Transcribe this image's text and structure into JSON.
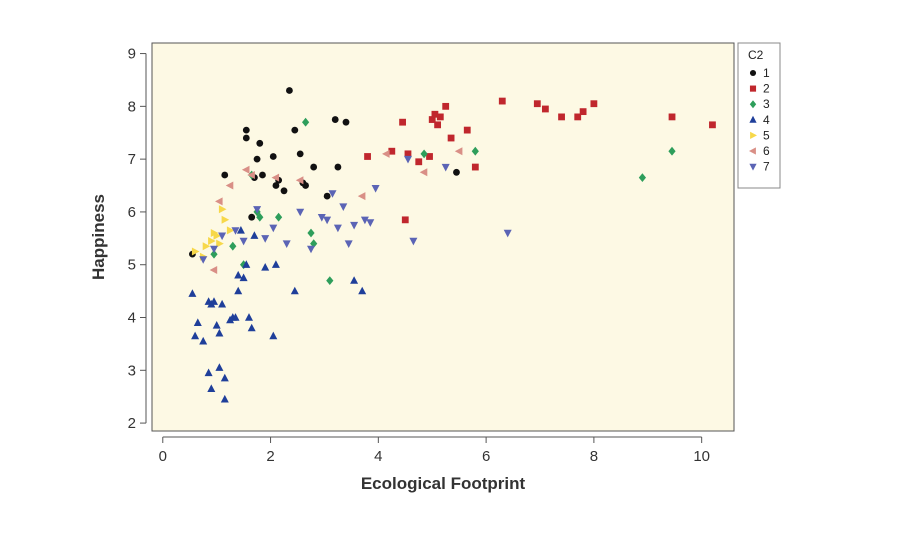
{
  "chart_data": {
    "type": "scatter",
    "title": "",
    "xlabel": "Ecological Footprint",
    "ylabel": "Happiness",
    "xlim": [
      -0.2,
      10.6
    ],
    "ylim": [
      1.85,
      9.2
    ],
    "xticks": [
      0,
      2,
      4,
      6,
      8,
      10
    ],
    "yticks": [
      2,
      3,
      4,
      5,
      6,
      7,
      8,
      9
    ],
    "xtick_labels": [
      "0",
      "2",
      "4",
      "6",
      "8",
      "10"
    ],
    "ytick_labels": [
      "2",
      "3",
      "4",
      "5",
      "6",
      "7",
      "8",
      "9"
    ],
    "grid": false,
    "plot_background": "#fdf9e4",
    "legend": {
      "title": "C2",
      "position": "right"
    },
    "series": [
      {
        "name": "1",
        "color": "#111111",
        "marker": "circle",
        "x": [
          0.55,
          1.15,
          1.55,
          1.55,
          1.7,
          1.75,
          1.8,
          1.85,
          2.05,
          2.1,
          2.15,
          2.25,
          2.35,
          2.45,
          2.55,
          2.6,
          2.65,
          2.8,
          3.05,
          3.2,
          3.25,
          3.4,
          5.45,
          1.65
        ],
        "y": [
          5.2,
          6.7,
          7.55,
          7.4,
          6.65,
          7.0,
          7.3,
          6.7,
          7.05,
          6.5,
          6.6,
          6.4,
          8.3,
          7.55,
          7.1,
          6.55,
          6.5,
          6.85,
          6.3,
          7.75,
          6.85,
          7.7,
          6.75,
          5.9
        ]
      },
      {
        "name": "2",
        "color": "#c0272d",
        "marker": "square",
        "x": [
          3.8,
          4.25,
          4.45,
          4.5,
          4.55,
          4.75,
          4.95,
          5.0,
          5.05,
          5.1,
          5.15,
          5.25,
          5.35,
          5.65,
          5.8,
          6.3,
          6.95,
          7.1,
          7.4,
          7.7,
          7.8,
          8.0,
          9.45,
          10.2
        ],
        "y": [
          7.05,
          7.15,
          7.7,
          5.85,
          7.1,
          6.95,
          7.05,
          7.75,
          7.85,
          7.65,
          7.8,
          8.0,
          7.4,
          7.55,
          6.85,
          8.1,
          8.05,
          7.95,
          7.8,
          7.8,
          7.9,
          8.05,
          7.8,
          7.65
        ]
      },
      {
        "name": "3",
        "color": "#2e9e5b",
        "marker": "diamond",
        "x": [
          0.95,
          1.3,
          1.5,
          1.65,
          1.75,
          1.8,
          2.15,
          2.65,
          2.75,
          2.8,
          3.1,
          4.85,
          5.8,
          8.9,
          9.45
        ],
        "y": [
          5.2,
          5.35,
          5.0,
          6.7,
          6.0,
          5.9,
          5.9,
          7.7,
          5.6,
          5.4,
          4.7,
          7.1,
          7.15,
          6.65,
          7.15
        ]
      },
      {
        "name": "4",
        "color": "#1f3f9a",
        "marker": "triangle-up",
        "x": [
          0.55,
          0.6,
          0.65,
          0.75,
          0.85,
          0.85,
          0.9,
          0.9,
          0.95,
          1.0,
          1.05,
          1.05,
          1.1,
          1.15,
          1.15,
          1.25,
          1.3,
          1.35,
          1.4,
          1.4,
          1.45,
          1.5,
          1.55,
          1.6,
          1.65,
          1.7,
          1.9,
          2.05,
          2.1,
          2.45,
          3.55,
          3.7
        ],
        "y": [
          4.45,
          3.65,
          3.9,
          3.55,
          4.3,
          2.95,
          4.25,
          2.65,
          4.3,
          3.85,
          3.05,
          3.7,
          4.25,
          2.85,
          2.45,
          3.95,
          4.0,
          4.0,
          4.5,
          4.8,
          5.65,
          4.75,
          5.0,
          4.0,
          3.8,
          5.55,
          4.95,
          3.65,
          5.0,
          4.5,
          4.7,
          4.5
        ]
      },
      {
        "name": "5",
        "color": "#f7d84a",
        "marker": "triangle-right",
        "x": [
          0.6,
          0.75,
          0.8,
          0.9,
          0.95,
          1.0,
          1.05,
          1.1,
          1.15,
          1.25
        ],
        "y": [
          5.25,
          5.15,
          5.35,
          5.45,
          5.6,
          5.55,
          5.4,
          6.05,
          5.85,
          5.65
        ]
      },
      {
        "name": "6",
        "color": "#d98f86",
        "marker": "triangle-left",
        "x": [
          0.95,
          1.05,
          1.25,
          1.55,
          1.65,
          2.1,
          2.55,
          3.7,
          4.15,
          4.85,
          5.5
        ],
        "y": [
          4.9,
          6.2,
          6.5,
          6.8,
          6.7,
          6.65,
          6.6,
          6.3,
          7.1,
          6.75,
          7.15
        ]
      },
      {
        "name": "7",
        "color": "#5b64b5",
        "marker": "triangle-down",
        "x": [
          0.75,
          0.95,
          1.1,
          1.35,
          1.5,
          1.75,
          1.9,
          2.05,
          2.3,
          2.55,
          2.75,
          2.95,
          3.05,
          3.15,
          3.25,
          3.35,
          3.45,
          3.55,
          3.75,
          3.85,
          3.95,
          4.55,
          4.65,
          5.25,
          6.4
        ],
        "y": [
          5.1,
          5.3,
          5.55,
          5.65,
          5.45,
          6.05,
          5.5,
          5.7,
          5.4,
          6.0,
          5.3,
          5.9,
          5.85,
          6.35,
          5.7,
          6.1,
          5.4,
          5.75,
          5.85,
          5.8,
          6.45,
          7.0,
          5.45,
          6.85,
          5.6
        ]
      }
    ]
  }
}
